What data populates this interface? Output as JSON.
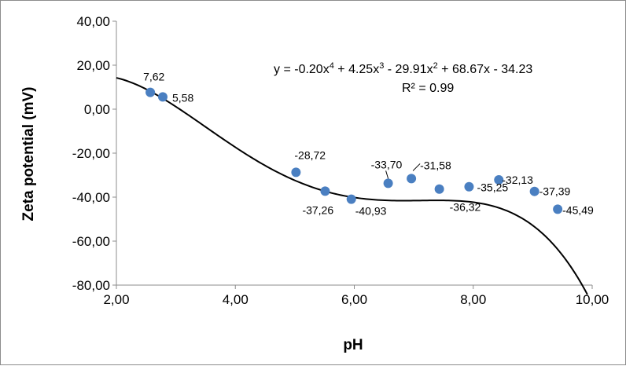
{
  "chart_data": {
    "type": "scatter",
    "xlabel": "pH",
    "ylabel": "Zeta potential (mV)",
    "xlim": [
      2,
      10
    ],
    "ylim": [
      -80,
      40
    ],
    "x_ticks": [
      "2,00",
      "4,00",
      "6,00",
      "8,00",
      "10,00"
    ],
    "y_ticks": [
      "40,00",
      "20,00",
      "0,00",
      "-20,00",
      "-40,00",
      "-60,00",
      "-80,00"
    ],
    "grid": false,
    "marker_color": "#4a7fc1",
    "points": [
      {
        "x": 2.57,
        "y": 7.62,
        "label": "7,62"
      },
      {
        "x": 2.78,
        "y": 5.58,
        "label": "5,58"
      },
      {
        "x": 5.02,
        "y": -28.72,
        "label": "-28,72"
      },
      {
        "x": 5.51,
        "y": -37.26,
        "label": "-37,26"
      },
      {
        "x": 5.95,
        "y": -40.93,
        "label": "-40,93"
      },
      {
        "x": 6.57,
        "y": -33.7,
        "label": "-33,70"
      },
      {
        "x": 6.96,
        "y": -31.58,
        "label": "-31,58"
      },
      {
        "x": 7.43,
        "y": -36.32,
        "label": "-36,32"
      },
      {
        "x": 7.93,
        "y": -35.25,
        "label": "-35,25"
      },
      {
        "x": 8.43,
        "y": -32.13,
        "label": "-32,13"
      },
      {
        "x": 9.03,
        "y": -37.39,
        "label": "-37,39"
      },
      {
        "x": 9.42,
        "y": -45.49,
        "label": "-45,49"
      }
    ],
    "trendline": {
      "type": "polynomial",
      "order": 4,
      "coefficients": [
        -0.2,
        4.25,
        -29.91,
        68.67,
        -34.23
      ],
      "x_range": [
        2.0,
        9.92
      ],
      "equation_prefix": "y = -0.20x",
      "equation_parts": [
        "4",
        " + 4.25x",
        "3",
        " - 29.91x",
        "2",
        " + 68.67x - 34.23"
      ],
      "r2": "R² = 0.99"
    }
  }
}
